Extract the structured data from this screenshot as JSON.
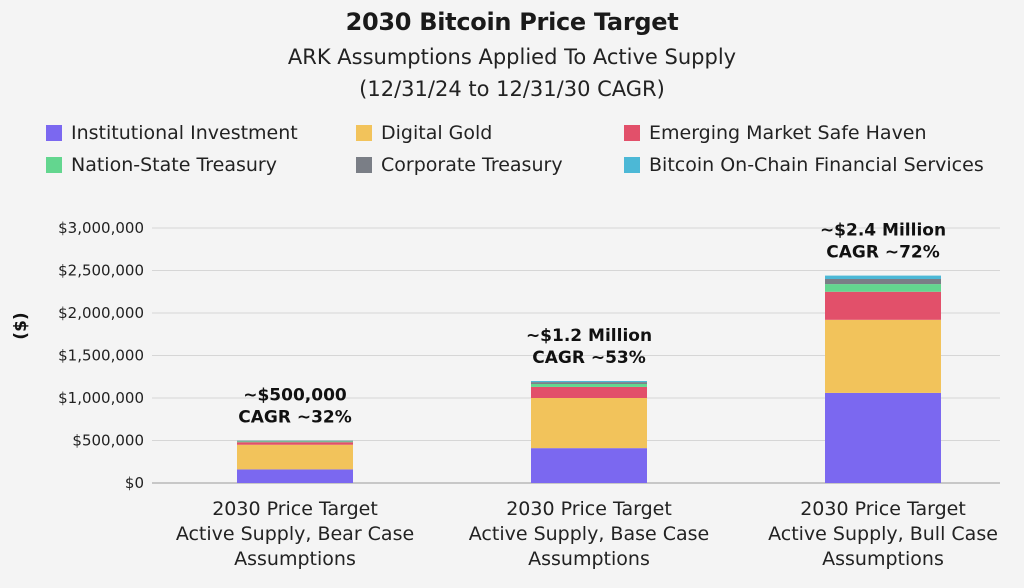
{
  "chart_data": {
    "type": "bar",
    "stacked": true,
    "title": "2030 Bitcoin Price Target",
    "subtitle_lines": [
      "ARK Assumptions Applied To Active Supply",
      "(12/31/24 to 12/31/30 CAGR)"
    ],
    "xlabel": "",
    "ylabel": "($)",
    "ylim": [
      0,
      3000000
    ],
    "yticks": [
      {
        "value": 0,
        "label": "$0"
      },
      {
        "value": 500000,
        "label": "$500,000"
      },
      {
        "value": 1000000,
        "label": "$1,000,000"
      },
      {
        "value": 1500000,
        "label": "$1,500,000"
      },
      {
        "value": 2000000,
        "label": "$2,000,000"
      },
      {
        "value": 2500000,
        "label": "$2,500,000"
      },
      {
        "value": 3000000,
        "label": "$3,000,000"
      }
    ],
    "grid": true,
    "legend_placement": "top",
    "categories": [
      [
        "2030 Price Target",
        "Active Supply, Bear Case",
        "Assumptions"
      ],
      [
        "2030 Price Target",
        "Active Supply, Base Case",
        "Assumptions"
      ],
      [
        "2030 Price Target",
        "Active Supply, Bull Case",
        "Assumptions"
      ]
    ],
    "series": [
      {
        "name": "Institutional Investment",
        "color": "#7b68f0",
        "values": [
          160000,
          410000,
          1060000
        ]
      },
      {
        "name": "Digital Gold",
        "color": "#f2c35b",
        "values": [
          290000,
          590000,
          860000
        ]
      },
      {
        "name": "Emerging Market Safe Haven",
        "color": "#e2506a",
        "values": [
          30000,
          130000,
          330000
        ]
      },
      {
        "name": "Nation-State Treasury",
        "color": "#63d68f",
        "values": [
          10000,
          35000,
          90000
        ]
      },
      {
        "name": "Corporate Treasury",
        "color": "#7a7e86",
        "values": [
          8000,
          22000,
          60000
        ]
      },
      {
        "name": "Bitcoin On-Chain Financial Services",
        "color": "#4cb8d6",
        "values": [
          2000,
          13000,
          40000
        ]
      }
    ],
    "annotations": [
      [
        "~$500,000",
        "CAGR ~32%"
      ],
      [
        "~$1.2 Million",
        "CAGR ~53%"
      ],
      [
        "~$2.4 Million",
        "CAGR ~72%"
      ]
    ]
  }
}
